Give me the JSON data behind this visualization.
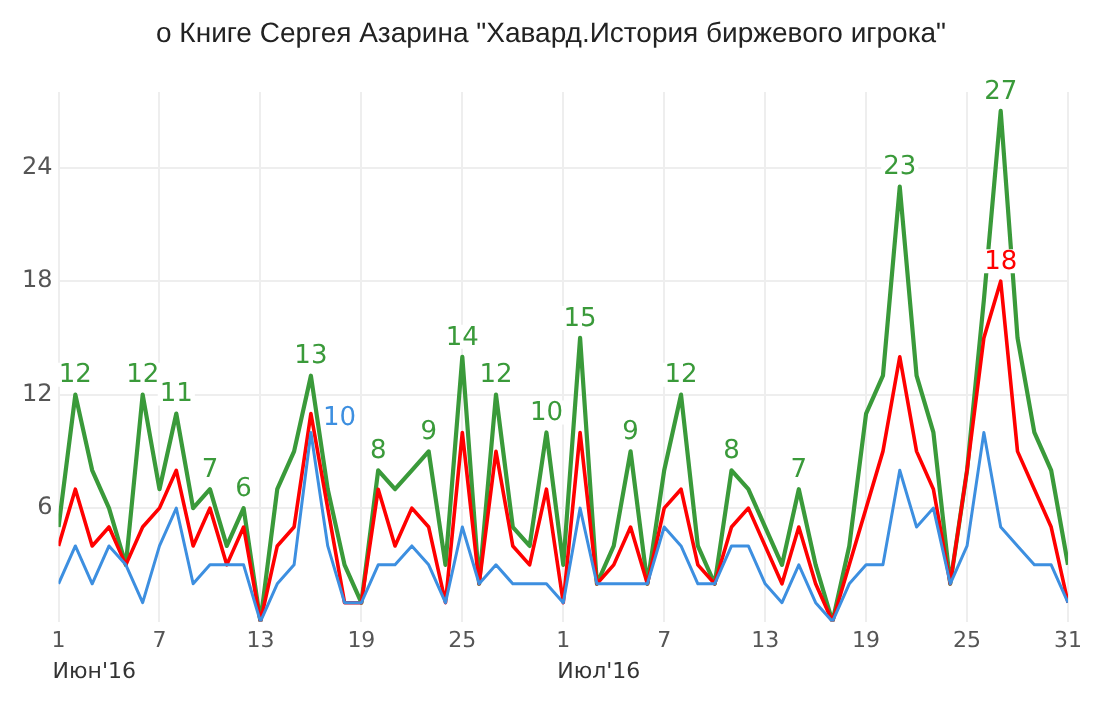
{
  "chart_data": {
    "type": "line",
    "title": "о Книге Сергея Азарина \"Хавард.История биржевого игрока\"",
    "x": [
      "2016-06-01",
      "2016-06-02",
      "2016-06-03",
      "2016-06-04",
      "2016-06-05",
      "2016-06-06",
      "2016-06-07",
      "2016-06-08",
      "2016-06-09",
      "2016-06-10",
      "2016-06-11",
      "2016-06-12",
      "2016-06-13",
      "2016-06-14",
      "2016-06-15",
      "2016-06-16",
      "2016-06-17",
      "2016-06-18",
      "2016-06-19",
      "2016-06-20",
      "2016-06-21",
      "2016-06-22",
      "2016-06-23",
      "2016-06-24",
      "2016-06-25",
      "2016-06-26",
      "2016-06-27",
      "2016-06-28",
      "2016-06-29",
      "2016-06-30",
      "2016-07-01",
      "2016-07-02",
      "2016-07-03",
      "2016-07-04",
      "2016-07-05",
      "2016-07-06",
      "2016-07-07",
      "2016-07-08",
      "2016-07-09",
      "2016-07-10",
      "2016-07-11",
      "2016-07-12",
      "2016-07-13",
      "2016-07-14",
      "2016-07-15",
      "2016-07-16",
      "2016-07-17",
      "2016-07-18",
      "2016-07-19",
      "2016-07-20",
      "2016-07-21",
      "2016-07-22",
      "2016-07-23",
      "2016-07-24",
      "2016-07-25",
      "2016-07-26",
      "2016-07-27",
      "2016-07-28",
      "2016-07-29",
      "2016-07-30",
      "2016-07-31"
    ],
    "series": [
      {
        "color": "#3d8fe0",
        "values": [
          2,
          4,
          2,
          4,
          3,
          1,
          4,
          6,
          2,
          3,
          3,
          3,
          0,
          2,
          3,
          10,
          4,
          1,
          1,
          3,
          3,
          4,
          3,
          1,
          5,
          2,
          3,
          2,
          2,
          2,
          1,
          6,
          2,
          2,
          2,
          2,
          5,
          4,
          2,
          2,
          4,
          4,
          2,
          1,
          3,
          1,
          0,
          2,
          3,
          3,
          8,
          5,
          6,
          2,
          4,
          10,
          5,
          4,
          3,
          3,
          1
        ],
        "value_labels": [
          null,
          null,
          null,
          null,
          null,
          null,
          null,
          null,
          null,
          null,
          null,
          null,
          null,
          null,
          null,
          "10",
          null,
          null,
          null,
          null,
          null,
          null,
          null,
          null,
          null,
          null,
          null,
          null,
          null,
          null,
          null,
          null,
          null,
          null,
          null,
          null,
          null,
          null,
          null,
          null,
          null,
          null,
          null,
          null,
          null,
          null,
          null,
          null,
          null,
          null,
          null,
          null,
          null,
          null,
          null,
          null,
          null,
          null,
          null,
          null,
          null
        ]
      },
      {
        "color": "#ff0000",
        "values": [
          4,
          7,
          4,
          5,
          3,
          5,
          6,
          8,
          4,
          6,
          3,
          5,
          0,
          4,
          5,
          11,
          6,
          1,
          1,
          7,
          4,
          6,
          5,
          1,
          10,
          2,
          9,
          4,
          3,
          7,
          1,
          10,
          2,
          3,
          5,
          2,
          6,
          7,
          3,
          2,
          5,
          6,
          4,
          2,
          5,
          2,
          0,
          3,
          6,
          9,
          14,
          9,
          7,
          2,
          8,
          15,
          18,
          9,
          7,
          5,
          1
        ],
        "value_labels": [
          null,
          null,
          null,
          null,
          null,
          null,
          null,
          null,
          null,
          null,
          null,
          null,
          null,
          null,
          null,
          null,
          null,
          null,
          null,
          null,
          null,
          null,
          null,
          null,
          null,
          null,
          null,
          null,
          null,
          null,
          null,
          null,
          null,
          null,
          null,
          null,
          null,
          null,
          null,
          null,
          null,
          null,
          null,
          null,
          null,
          null,
          null,
          null,
          null,
          null,
          null,
          null,
          null,
          null,
          null,
          null,
          "18",
          null,
          null,
          null,
          null
        ]
      },
      {
        "color": "#3a9a3a",
        "values": [
          5,
          12,
          8,
          6,
          3,
          12,
          7,
          11,
          6,
          7,
          4,
          6,
          0,
          7,
          9,
          13,
          7,
          3,
          1,
          8,
          7,
          8,
          9,
          3,
          14,
          2,
          12,
          5,
          4,
          10,
          3,
          15,
          2,
          4,
          9,
          2,
          8,
          12,
          4,
          2,
          8,
          7,
          5,
          3,
          7,
          3,
          0,
          4,
          11,
          13,
          23,
          13,
          10,
          2,
          8,
          17,
          27,
          15,
          10,
          8,
          3
        ],
        "value_labels": [
          null,
          "12",
          null,
          null,
          null,
          "12",
          null,
          "11",
          null,
          "7",
          null,
          "6",
          null,
          null,
          null,
          "13",
          null,
          null,
          null,
          "8",
          null,
          null,
          "9",
          null,
          "14",
          null,
          "12",
          null,
          null,
          "10",
          null,
          "15",
          null,
          null,
          "9",
          null,
          null,
          "12",
          null,
          null,
          "8",
          null,
          null,
          null,
          "7",
          null,
          null,
          null,
          null,
          null,
          "23",
          null,
          null,
          null,
          null,
          null,
          "27",
          null,
          null,
          null,
          null
        ]
      }
    ],
    "annotations": [
      "Июн'16",
      "Июл'16"
    ],
    "xlim": [
      "2016-06-01",
      "2016-07-31"
    ],
    "xticks": [
      {
        "value": "2016-06-01",
        "label": "1"
      },
      {
        "value": "2016-06-07",
        "label": "7"
      },
      {
        "value": "2016-06-13",
        "label": "13"
      },
      {
        "value": "2016-06-19",
        "label": "19"
      },
      {
        "value": "2016-06-25",
        "label": "25"
      },
      {
        "value": "2016-07-01",
        "label": "1"
      },
      {
        "value": "2016-07-07",
        "label": "7"
      },
      {
        "value": "2016-07-13",
        "label": "13"
      },
      {
        "value": "2016-07-19",
        "label": "19"
      },
      {
        "value": "2016-07-25",
        "label": "25"
      },
      {
        "value": "2016-07-31",
        "label": "31"
      }
    ],
    "ylim": [
      0,
      28
    ],
    "yticks": [
      6,
      12,
      18,
      24
    ],
    "grid": true,
    "legend": false,
    "marker": "none",
    "line_style": "solid"
  }
}
